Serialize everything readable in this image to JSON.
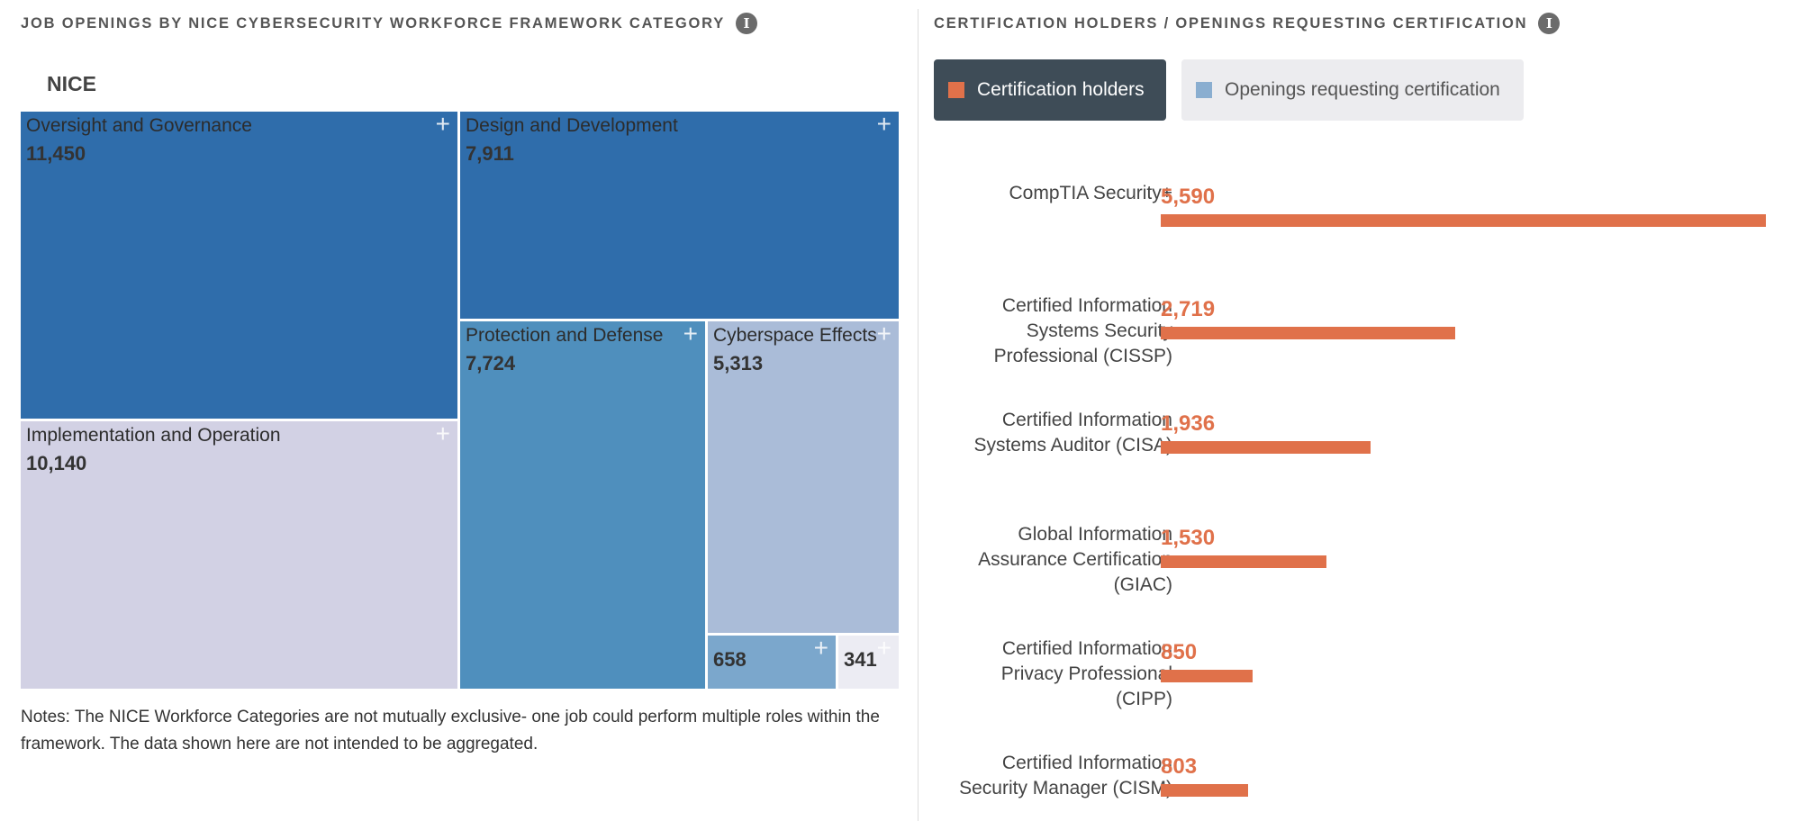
{
  "left_panel": {
    "title": "JOB OPENINGS BY NICE CYBERSECURITY WORKFORCE FRAMEWORK CATEGORY",
    "info_icon": "info-icon",
    "root_label": "NICE",
    "notes": "Notes: The NICE Workforce Categories are not mutually exclusive- one job could perform multiple roles within the framework. The data shown here are not intended to be aggregated."
  },
  "right_panel": {
    "title": "CERTIFICATION HOLDERS / OPENINGS REQUESTING CERTIFICATION",
    "info_icon": "info-icon",
    "legend": {
      "holders_label": "Certification holders",
      "openings_label": "Openings requesting certification",
      "holders_color": "#e0714a",
      "openings_color": "#8aaed0",
      "active_bg": "#3e4c57",
      "inactive_bg": "#ececef"
    }
  },
  "chart_data": [
    {
      "type": "treemap",
      "root": "NICE",
      "items": [
        {
          "name": "Oversight and Governance",
          "value": 11450,
          "label": "11,450",
          "color": "#2f6dab"
        },
        {
          "name": "Implementation and Operation",
          "value": 10140,
          "label": "10,140",
          "color": "#d2d1e4"
        },
        {
          "name": "Design and Development",
          "value": 7911,
          "label": "7,911",
          "color": "#2f6dab"
        },
        {
          "name": "Protection and Defense",
          "value": 7724,
          "label": "7,724",
          "color": "#4f8fbd"
        },
        {
          "name": "Cyberspace Effects",
          "value": 5313,
          "label": "5,313",
          "color": "#aabcd8"
        },
        {
          "name": "",
          "value": 658,
          "label": "658",
          "color": "#7ba7cc"
        },
        {
          "name": "",
          "value": 341,
          "label": "341",
          "color": "#ececf3"
        }
      ]
    },
    {
      "type": "bar",
      "orientation": "horizontal",
      "series": [
        {
          "name": "Certification holders",
          "color": "#e0714a"
        }
      ],
      "categories": [
        "CompTIA Security+",
        "Certified Information Systems Security Professional (CISSP)",
        "Certified Information Systems Auditor (CISA)",
        "Global Information Assurance Certification (GIAC)",
        "Certified Information Privacy Professional (CIPP)",
        "Certified Information Security Manager (CISM)"
      ],
      "category_lines": [
        [
          "CompTIA Security+"
        ],
        [
          "Certified Information",
          "Systems Security",
          "Professional (CISSP)"
        ],
        [
          "Certified Information",
          "Systems Auditor (CISA)"
        ],
        [
          "Global Information",
          "Assurance Certification",
          "(GIAC)"
        ],
        [
          "Certified Information",
          "Privacy Professional",
          "(CIPP)"
        ],
        [
          "Certified Information",
          "Security Manager (CISM)"
        ]
      ],
      "values": [
        5590,
        2719,
        1936,
        1530,
        850,
        803
      ],
      "value_labels": [
        "5,590",
        "2,719",
        "1,936",
        "1,530",
        "850",
        "803"
      ],
      "xlim": [
        0,
        5590
      ]
    }
  ]
}
